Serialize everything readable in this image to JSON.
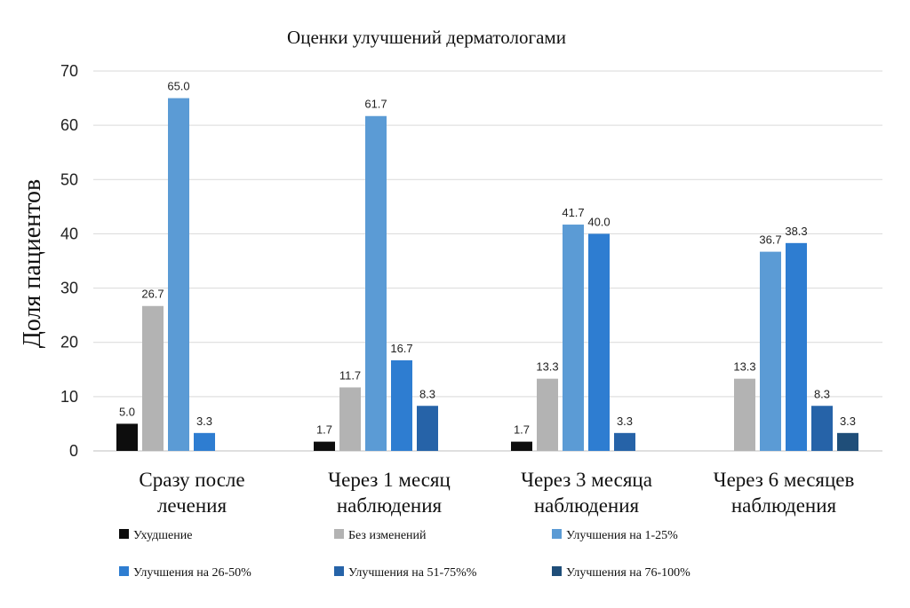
{
  "chart_data": {
    "type": "bar",
    "title": "Оценки улучшений дерматологами",
    "ylabel": "Доля пациентов",
    "xlabel": "",
    "ylim": [
      0,
      70
    ],
    "yticks": [
      "0",
      "10",
      "20",
      "30",
      "40",
      "50",
      "60",
      "70"
    ],
    "grid": true,
    "legend_position": "bottom",
    "categories": [
      [
        "Сразу после",
        "лечения"
      ],
      [
        "Через  1 месяц",
        "наблюдения"
      ],
      [
        "Через  3 месяца",
        "наблюдения"
      ],
      [
        "Через  6 месяцев",
        "наблюдения"
      ]
    ],
    "series": [
      {
        "name": "Ухудшение",
        "color": "#0d0d0d",
        "values": [
          5.0,
          1.7,
          1.7,
          null
        ],
        "labels": [
          "5.0",
          "1.7",
          "1.7",
          ""
        ]
      },
      {
        "name": "Без изменений",
        "color": "#b3b3b3",
        "values": [
          26.7,
          11.7,
          13.3,
          13.3
        ],
        "labels": [
          "26.7",
          "11.7",
          "13.3",
          "13.3"
        ]
      },
      {
        "name": "Улучшения на 1-25%",
        "color": "#5b9bd5",
        "values": [
          65.0,
          61.7,
          41.7,
          36.7
        ],
        "labels": [
          "65.0",
          "61.7",
          "41.7",
          "36.7"
        ]
      },
      {
        "name": "Улучшения на 26-50%",
        "color": "#2e7dd1",
        "values": [
          3.3,
          16.7,
          40.0,
          38.3
        ],
        "labels": [
          "3.3",
          "16.7",
          "40.0",
          "38.3"
        ]
      },
      {
        "name": "Улучшения на 51-75%%",
        "color": "#2663a8",
        "values": [
          null,
          8.3,
          3.3,
          8.3
        ],
        "labels": [
          "",
          "8.3",
          "3.3",
          "8.3"
        ]
      },
      {
        "name": "Улучшения на 76-100%",
        "color": "#1f4e79",
        "values": [
          null,
          null,
          null,
          3.3
        ],
        "labels": [
          "",
          "",
          "",
          "3.3"
        ]
      }
    ]
  }
}
